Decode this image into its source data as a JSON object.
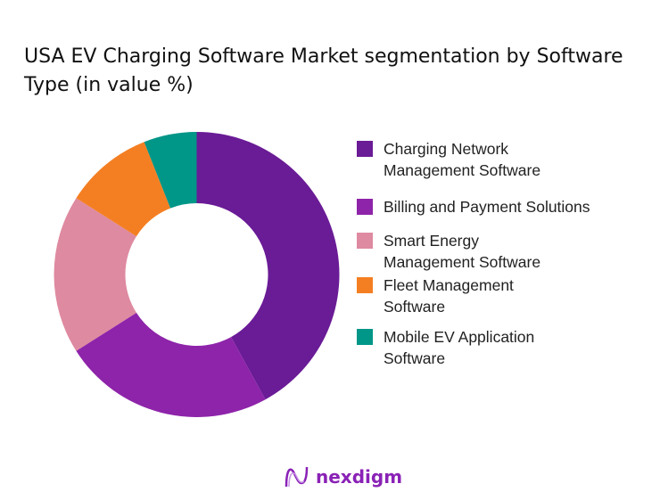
{
  "chart_data": {
    "type": "pie",
    "subtype": "donut",
    "title": "USA EV Charging Software Market  segmentation by Software Type (in value %)",
    "categories": [
      "Charging Network Management Software",
      "Billing and Payment Solutions",
      "Smart Energy Management Software",
      "Fleet Management Software",
      "Mobile EV Application Software"
    ],
    "legend_lines": [
      [
        "Charging Network",
        "Management Software"
      ],
      [
        "Billing and Payment Solutions"
      ],
      [
        "Smart Energy",
        "Management Software"
      ],
      [
        "Fleet Management",
        "Software"
      ],
      [
        "Mobile EV Application",
        "Software"
      ]
    ],
    "values": [
      42,
      24,
      18,
      10,
      6
    ],
    "colors": [
      "#6a1b96",
      "#8e24aa",
      "#de8aa0",
      "#f47f22",
      "#009688"
    ],
    "legend_position": "right",
    "start_angle": "top, clockwise"
  },
  "brand": {
    "name": "nexdigm",
    "color": "#8a22b6"
  }
}
